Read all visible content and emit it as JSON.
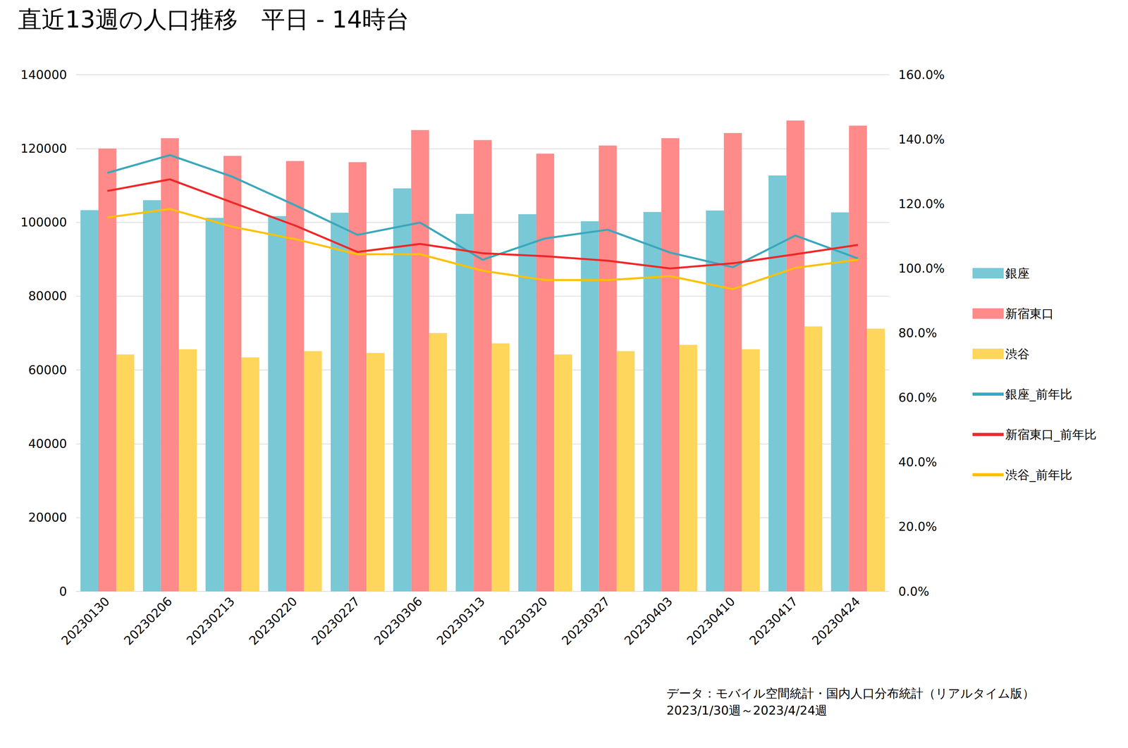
{
  "chart_data": {
    "type": "bar",
    "title": "直近13週の人口推移　平日 - 14時台",
    "categories": [
      "20230130",
      "20230206",
      "20230213",
      "20230220",
      "20230227",
      "20230306",
      "20230313",
      "20230320",
      "20230327",
      "20230403",
      "20230410",
      "20230417",
      "20230424"
    ],
    "series": [
      {
        "name": "銀座",
        "type": "bar",
        "color": "#79C8D6",
        "values": [
          103300,
          106000,
          101200,
          101700,
          102600,
          109200,
          102300,
          102200,
          100300,
          102800,
          103200,
          112700,
          102700
        ]
      },
      {
        "name": "新宿東口",
        "type": "bar",
        "color": "#FF8A8A",
        "values": [
          120000,
          122800,
          118000,
          116600,
          116300,
          125000,
          122300,
          118600,
          120800,
          122800,
          124200,
          127600,
          126200
        ]
      },
      {
        "name": "渋谷",
        "type": "bar",
        "color": "#FFD65C",
        "values": [
          64200,
          65600,
          63400,
          65100,
          64600,
          70000,
          67200,
          64200,
          65100,
          66800,
          65600,
          71800,
          71200
        ]
      },
      {
        "name": "銀座_前年比",
        "type": "line",
        "axis": "y2",
        "color": "#3AA8BC",
        "values": [
          129.6,
          135.1,
          128.4,
          119.6,
          110.4,
          114.2,
          102.7,
          109.3,
          112.0,
          104.9,
          100.4,
          110.2,
          103.1
        ]
      },
      {
        "name": "新宿東口_前年比",
        "type": "line",
        "axis": "y2",
        "color": "#F02828",
        "values": [
          124.0,
          127.6,
          120.4,
          113.3,
          105.1,
          107.6,
          104.7,
          103.8,
          102.4,
          100.0,
          101.6,
          104.4,
          107.3
        ]
      },
      {
        "name": "渋谷_前年比",
        "type": "line",
        "axis": "y2",
        "color": "#FFC000",
        "values": [
          115.8,
          118.4,
          112.9,
          109.1,
          104.4,
          104.4,
          99.3,
          96.4,
          96.4,
          97.6,
          93.6,
          100.2,
          102.7
        ]
      }
    ],
    "ylim": [
      0,
      140000
    ],
    "yticks": [
      0,
      20000,
      40000,
      60000,
      80000,
      100000,
      120000,
      140000
    ],
    "y2lim": [
      0,
      160
    ],
    "y2ticks": [
      {
        "value": 0,
        "label": "0.0%"
      },
      {
        "value": 20,
        "label": "20.0%"
      },
      {
        "value": 40,
        "label": "40.0%"
      },
      {
        "value": 60,
        "label": "60.0%"
      },
      {
        "value": 80,
        "label": "80.0%"
      },
      {
        "value": 100,
        "label": "100.0%"
      },
      {
        "value": 120,
        "label": "120.0%"
      },
      {
        "value": 140,
        "label": "140.0%"
      },
      {
        "value": 160,
        "label": "160.0%"
      }
    ],
    "annotations": [
      "データ：モバイル空間統計・国内人口分布統計（リアルタイム版）",
      "2023/1/30週～2023/4/24週"
    ],
    "grid": true,
    "legend": "right"
  }
}
